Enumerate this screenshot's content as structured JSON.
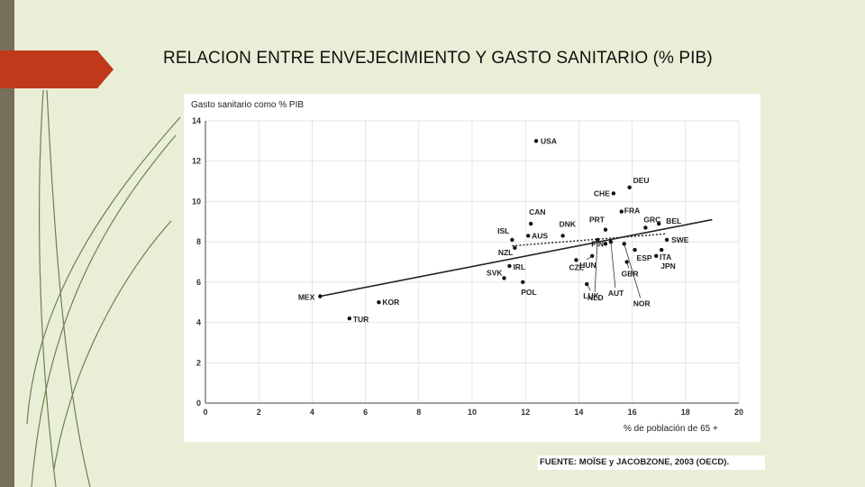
{
  "slide": {
    "title": "RELACION ENTRE ENVEJECIMIENTO Y GASTO SANITARIO (% PIB)",
    "source": "FUENTE: MOÏSE y JACOBZONE, 2003 (OECD).",
    "colors": {
      "background": "#e9efd6",
      "accent": "#c0391b",
      "sidebar": "#76705a"
    }
  },
  "chart_data": {
    "type": "scatter",
    "ylabel": "Gasto sanitario como % PIB",
    "xlabel": "% de población de 65 +",
    "xlim": [
      0,
      20
    ],
    "ylim": [
      0,
      14
    ],
    "xticks": [
      "0",
      "2",
      "4",
      "6",
      "8",
      "10",
      "12",
      "14",
      "16",
      "18",
      "20"
    ],
    "yticks": [
      "0",
      "2",
      "4",
      "6",
      "8",
      "10",
      "12",
      "14"
    ],
    "grid": true,
    "points": [
      {
        "label": "USA",
        "x": 12.4,
        "y": 13.0
      },
      {
        "label": "DEU",
        "x": 15.9,
        "y": 10.7
      },
      {
        "label": "CHE",
        "x": 15.3,
        "y": 10.4
      },
      {
        "label": "FRA",
        "x": 15.6,
        "y": 9.5
      },
      {
        "label": "CAN",
        "x": 12.2,
        "y": 8.9
      },
      {
        "label": "GRC",
        "x": 16.5,
        "y": 8.7
      },
      {
        "label": "BEL",
        "x": 17.0,
        "y": 8.9
      },
      {
        "label": "PRT",
        "x": 15.0,
        "y": 8.6
      },
      {
        "label": "DNK",
        "x": 13.4,
        "y": 8.3
      },
      {
        "label": "ISL",
        "x": 11.5,
        "y": 8.1
      },
      {
        "label": "AUS",
        "x": 12.1,
        "y": 8.3
      },
      {
        "label": "SWE",
        "x": 17.3,
        "y": 8.1
      },
      {
        "label": "FIN",
        "x": 15.0,
        "y": 7.9
      },
      {
        "label": "NZL",
        "x": 11.6,
        "y": 7.7
      },
      {
        "label": "ITA",
        "x": 17.1,
        "y": 7.6
      },
      {
        "label": "ESP",
        "x": 16.1,
        "y": 7.6
      },
      {
        "label": "IRL",
        "x": 11.4,
        "y": 6.8
      },
      {
        "label": "CZE",
        "x": 13.9,
        "y": 7.1
      },
      {
        "label": "HUN",
        "x": 14.5,
        "y": 7.3
      },
      {
        "label": "JPN",
        "x": 16.9,
        "y": 7.3
      },
      {
        "label": "GBR",
        "x": 15.8,
        "y": 7.0
      },
      {
        "label": "SVK",
        "x": 11.2,
        "y": 6.2
      },
      {
        "label": "POL",
        "x": 11.9,
        "y": 6.0
      },
      {
        "label": "LUX",
        "x": 14.3,
        "y": 5.9
      },
      {
        "label": "NLD",
        "x": 14.7,
        "y": 8.1
      },
      {
        "label": "AUT",
        "x": 15.2,
        "y": 8.0
      },
      {
        "label": "NOR",
        "x": 15.7,
        "y": 7.9
      },
      {
        "label": "MEX",
        "x": 4.3,
        "y": 5.3
      },
      {
        "label": "KOR",
        "x": 6.5,
        "y": 5.0
      },
      {
        "label": "TUR",
        "x": 5.4,
        "y": 4.2
      }
    ],
    "trend_lines": [
      {
        "style": "solid",
        "x": [
          4.3,
          19.0
        ],
        "y": [
          5.3,
          9.1
        ]
      },
      {
        "style": "dotted",
        "x": [
          11.5,
          17.3
        ],
        "y": [
          7.8,
          8.4
        ]
      }
    ]
  }
}
